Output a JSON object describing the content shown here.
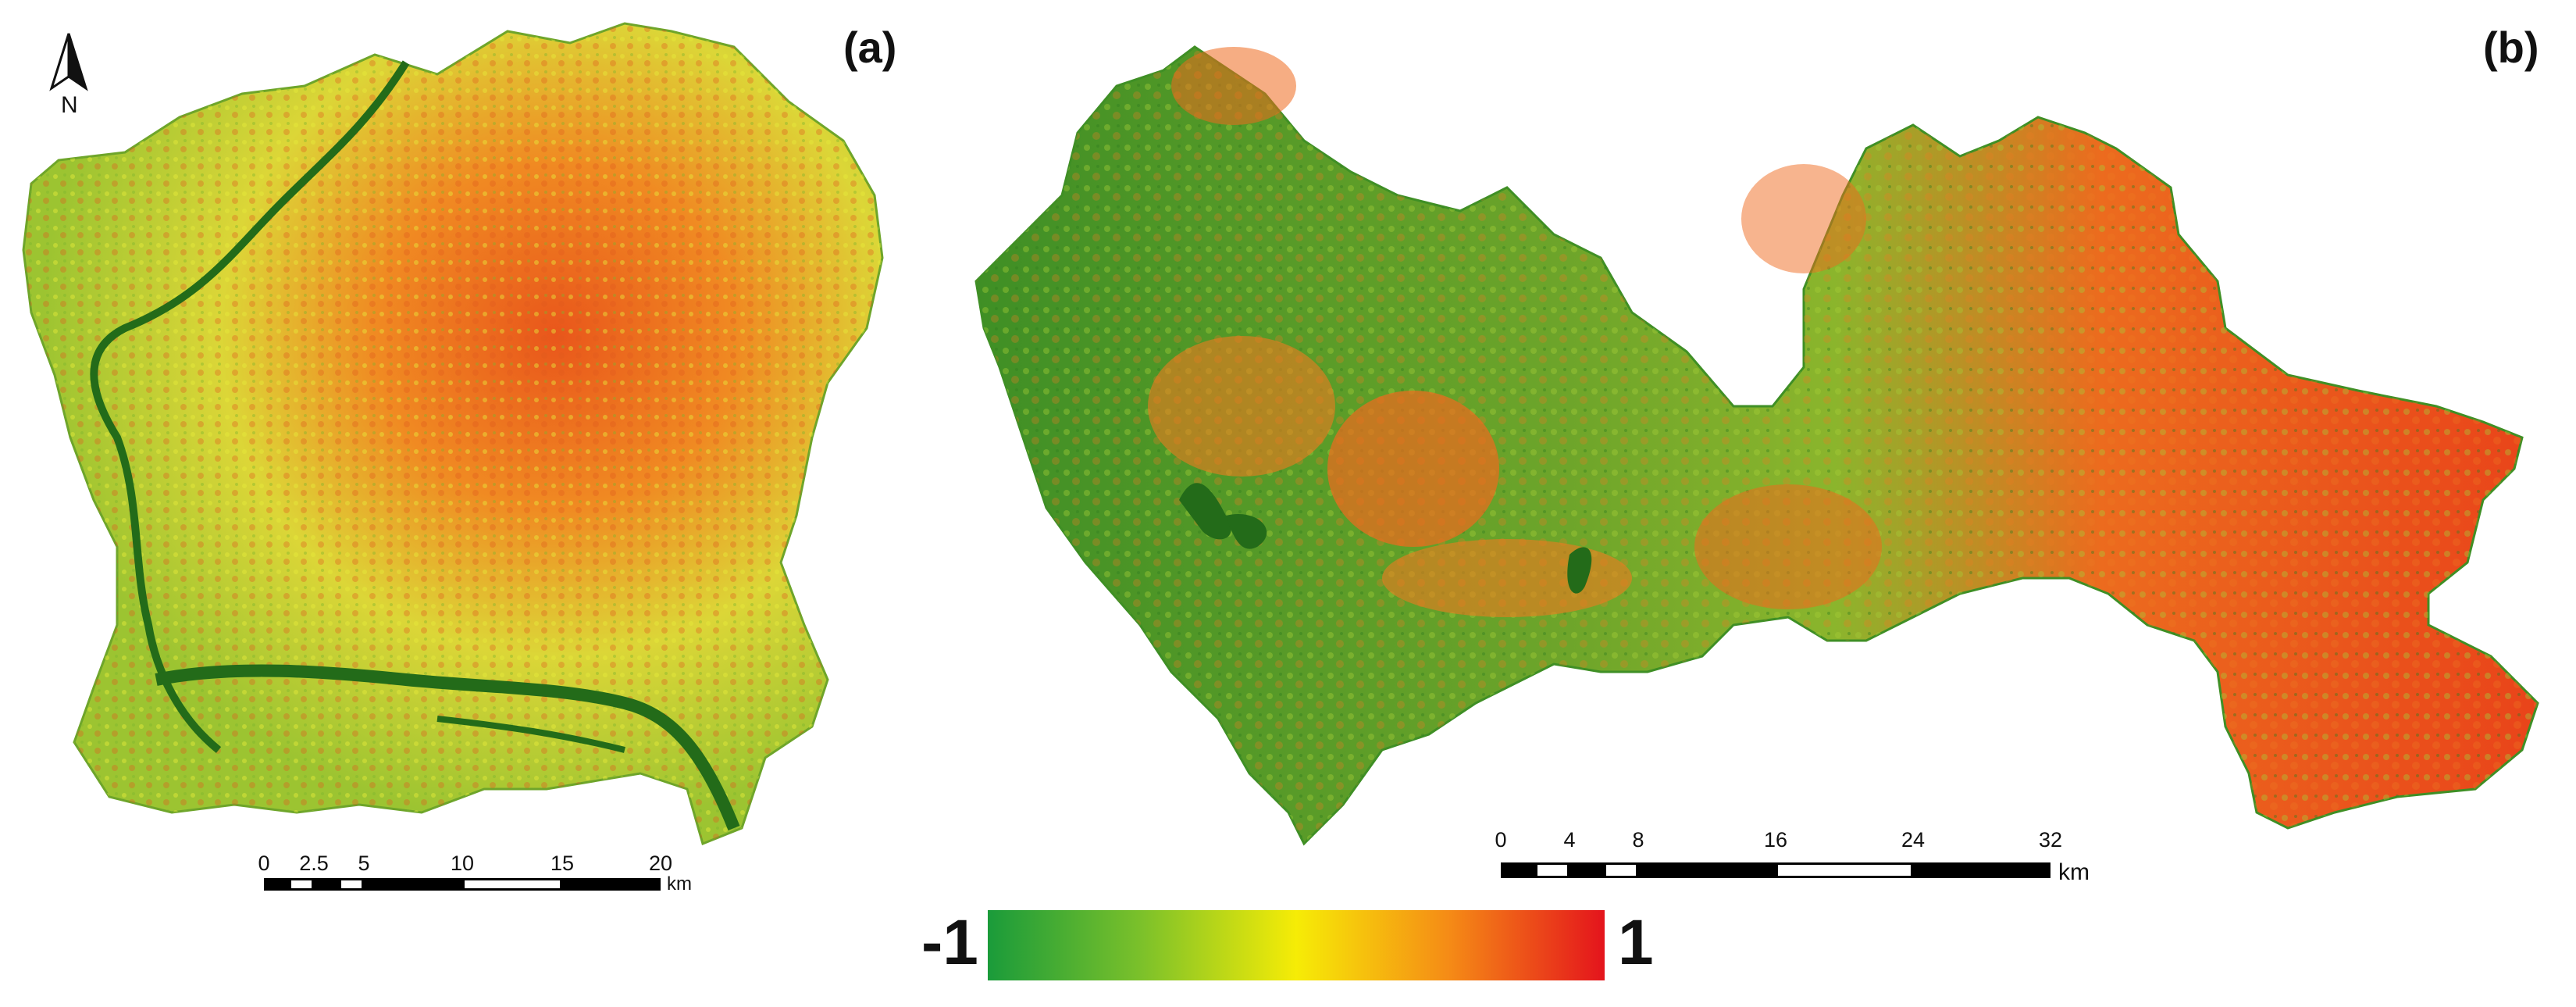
{
  "panels": {
    "a": {
      "label": "(a)"
    },
    "b": {
      "label": "(b)"
    }
  },
  "north_arrow": {
    "letter": "N",
    "icon": "north-arrow-icon"
  },
  "scalebar_a": {
    "ticks": [
      "0",
      "2.5",
      "5",
      "10",
      "15",
      "20"
    ],
    "unit": "km"
  },
  "scalebar_b": {
    "ticks": [
      "0",
      "4",
      "8",
      "16",
      "24",
      "32"
    ],
    "unit": "km"
  },
  "legend": {
    "min_label": "-1",
    "max_label": "1",
    "colors": [
      "#1a9b3a",
      "#7cc12a",
      "#f6ec06",
      "#f58a16",
      "#e4141c"
    ]
  },
  "colors": {
    "water": "#1f6b1a",
    "low": "#3f8f25",
    "mid": "#d8dc35",
    "high": "#ef6a1e"
  }
}
